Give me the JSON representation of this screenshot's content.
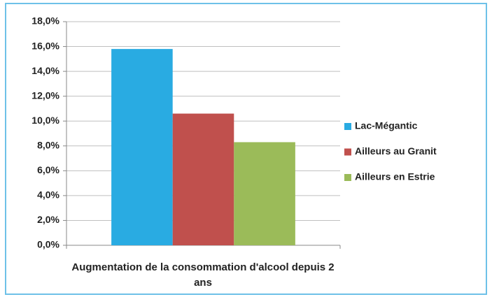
{
  "chart_data": {
    "type": "bar",
    "categories": [
      "Augmentation de la consommation d'alcool depuis 2 ans"
    ],
    "series": [
      {
        "name": "Lac-Mégantic",
        "color": "#29abe2",
        "values": [
          15.8
        ]
      },
      {
        "name": "Ailleurs au Granit",
        "color": "#c0504d",
        "values": [
          10.6
        ]
      },
      {
        "name": "Ailleurs en Estrie",
        "color": "#9bbb59",
        "values": [
          8.3
        ]
      }
    ],
    "ylim": [
      0,
      18
    ],
    "yticks": [
      {
        "value": 0,
        "label": "0,0%"
      },
      {
        "value": 2,
        "label": "2,0%"
      },
      {
        "value": 4,
        "label": "4,0%"
      },
      {
        "value": 6,
        "label": "6,0%"
      },
      {
        "value": 8,
        "label": "8,0%"
      },
      {
        "value": 10,
        "label": "10,0%"
      },
      {
        "value": 12,
        "label": "12,0%"
      },
      {
        "value": 14,
        "label": "14,0%"
      },
      {
        "value": 16,
        "label": "16,0%"
      },
      {
        "value": 18,
        "label": "18,0%"
      }
    ],
    "grid": true,
    "legend": "right"
  }
}
